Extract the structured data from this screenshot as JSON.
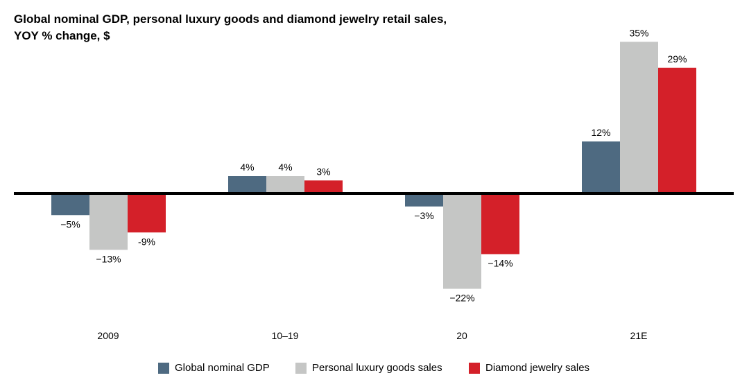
{
  "title": {
    "line1": "Global nominal GDP, personal luxury goods and diamond jewelry retail sales,",
    "line2": "YOY % change, $"
  },
  "chart_data": {
    "type": "bar",
    "title": "Global nominal GDP, personal luxury goods and diamond jewelry retail sales, YOY % change, $",
    "categories": [
      "2009",
      "10–19",
      "20",
      "21E"
    ],
    "series": [
      {
        "name": "Global nominal GDP",
        "color": "#4e6a81",
        "values": [
          -5,
          4,
          -3,
          12
        ],
        "labels": [
          "−5%",
          "4%",
          "−3%",
          "12%"
        ]
      },
      {
        "name": "Personal luxury goods sales",
        "color": "#c5c6c5",
        "values": [
          -13,
          4,
          -22,
          35
        ],
        "labels": [
          "−13%",
          "4%",
          "−22%",
          "35%"
        ]
      },
      {
        "name": "Diamond jewelry sales",
        "color": "#d42029",
        "values": [
          -9,
          3,
          -14,
          29
        ],
        "labels": [
          "-9%",
          "3%",
          "−14%",
          "29%"
        ]
      }
    ],
    "ylim": [
      -22,
      35
    ],
    "grid": false,
    "legend_position": "bottom"
  }
}
